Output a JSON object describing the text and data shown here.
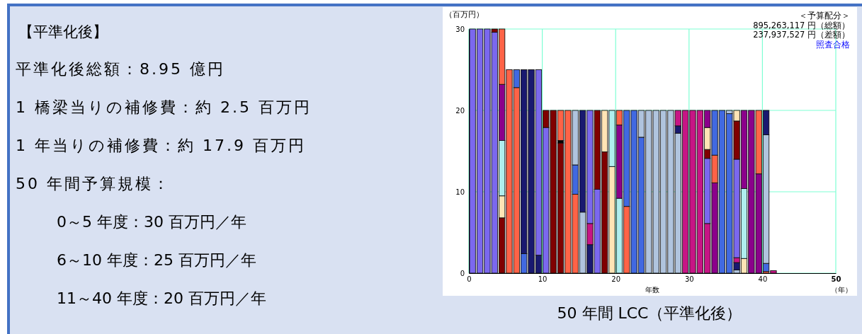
{
  "chart_data": [
    {
      "type": "other",
      "title": "【平準化後】",
      "annotations": [
        "平準化後総額：8.95 億円",
        "1 橋梁当りの補修費：約 2.5 百万円",
        "1 年当りの補修費：約 17.9 百万円",
        "50 年間予算規模：",
        "0～5 年度：30 百万円／年",
        "6～10 年度：25 百万円／年",
        "11～40 年度：20 百万円／年"
      ]
    },
    {
      "type": "bar",
      "stacked": true,
      "title": "50 年間 LCC（平準化後）",
      "xlabel": "年数",
      "ylabel": "（百万円）",
      "annotations": [
        "＜予算配分＞",
        "895,263,117 円（総額）",
        "237,937,527 円（差額）",
        "照査合格",
        "（年）"
      ],
      "xlim": [
        0,
        50
      ],
      "xticks": [
        0,
        10,
        20,
        30,
        40,
        50
      ],
      "ylim": [
        0,
        30
      ],
      "yticks": [
        0,
        10,
        20,
        30
      ],
      "grid": true,
      "x": [
        0.5,
        1.5,
        2.5,
        3.5,
        4.5,
        5.5,
        6.5,
        7.5,
        8.5,
        9.5,
        10.5,
        11.5,
        12.5,
        13.5,
        14.5,
        15.5,
        16.5,
        17.5,
        18.5,
        19.5,
        20.5,
        21.5,
        22.5,
        23.5,
        24.5,
        25.5,
        26.5,
        27.5,
        28.5,
        29.5,
        30.5,
        31.5,
        32.5,
        33.5,
        34.5,
        35.5,
        36.5,
        37.5,
        38.5,
        39.5,
        40.5,
        41.5
      ],
      "series": [
        {
          "values": [
            30,
            30,
            30,
            29.6,
            6.8,
            25,
            22.8,
            2.4,
            25,
            2.2,
            17.9,
            20,
            16.0,
            20,
            9.7,
            7.5,
            3.5,
            10.3,
            14.9,
            13.1,
            9.2,
            8.2,
            20,
            16.7,
            20,
            20,
            20,
            20,
            17.2,
            20,
            20,
            20,
            6.1,
            11.1,
            20,
            19.6,
            0.4,
            1.8,
            20,
            12.2,
            0.2,
            0.3
          ],
          "colors": [
            "#7b68ee",
            "#7b68ee",
            "#7b68ee",
            "#7b68ee",
            "#800000",
            "#ff6347",
            "#ff6347",
            "#4169e1",
            "#191970",
            "#191970",
            "#7b68ee",
            "#800000",
            "#800000",
            "#ff6347",
            "#ff6347",
            "#b0c4de",
            "#191970",
            "#7b68ee",
            "#800000",
            "#ffe4b5",
            "#afeeee",
            "#ff6347",
            "#4169e1",
            "#4169e1",
            "#b0c4de",
            "#b0c4de",
            "#b0c4de",
            "#b0c4de",
            "#b0c4de",
            "#c71585",
            "#c71585",
            "#c71585",
            "#c71585",
            "#8b008b",
            "#4169e1",
            "#4169e1",
            "#b0c4de",
            "#ffe4b5",
            "#8b008b",
            "#8b008b",
            "#ff6347",
            "#c71585"
          ]
        },
        {
          "values": [
            null,
            null,
            null,
            0.4,
            2.7,
            null,
            2.2,
            22.6,
            null,
            22.8,
            2.1,
            null,
            0.3,
            null,
            3.6,
            12.5,
            2.6,
            9.7,
            5.1,
            6.9,
            9.0,
            11.8,
            null,
            3.3,
            null,
            null,
            null,
            null,
            0.9,
            null,
            null,
            null,
            8.0,
            3.4,
            null,
            0.4,
            0.9,
            8.6,
            null,
            7.8,
            1.0,
            null
          ],
          "colors": [
            null,
            null,
            null,
            "#800000",
            "#ffe4b5",
            null,
            "#4169e1",
            "#191970",
            null,
            "#7b68ee",
            "#800000",
            null,
            "#000000",
            null,
            "#4169e1",
            "#191970",
            "#c71585",
            "#800000",
            "#ffe4b5",
            "#afeeee",
            "#8b008b",
            "#4169e1",
            null,
            "#b0c4de",
            null,
            null,
            null,
            null,
            "#191970",
            null,
            null,
            null,
            "#7b68ee",
            "#ff6347",
            null,
            "#b0c4de",
            "#191970",
            "#afeeee",
            null,
            "#ff6347",
            "#4169e1",
            null
          ]
        },
        {
          "values": [
            null,
            null,
            null,
            null,
            6.8,
            null,
            null,
            null,
            null,
            null,
            null,
            null,
            3.7,
            null,
            6.7,
            null,
            13.9,
            null,
            null,
            null,
            1.8,
            null,
            null,
            null,
            null,
            null,
            null,
            null,
            1.9,
            null,
            null,
            null,
            1.1,
            5.5,
            null,
            null,
            0.6,
            9.6,
            null,
            null,
            15.8,
            null
          ],
          "colors": [
            null,
            null,
            null,
            null,
            "#afeeee",
            null,
            null,
            null,
            null,
            null,
            null,
            null,
            "#ff6347",
            null,
            "#b0c4de",
            null,
            "#7b68ee",
            null,
            null,
            null,
            "#ff6347",
            null,
            null,
            null,
            null,
            null,
            null,
            null,
            "#c71585",
            null,
            null,
            null,
            "#800000",
            "#4169e1",
            null,
            null,
            "#c71585",
            "#8b008b",
            null,
            null,
            "#b0c4de",
            null
          ]
        },
        {
          "values": [
            null,
            null,
            null,
            null,
            6.9,
            null,
            null,
            null,
            null,
            null,
            null,
            null,
            null,
            null,
            null,
            null,
            null,
            null,
            null,
            null,
            null,
            null,
            null,
            null,
            null,
            null,
            null,
            null,
            null,
            null,
            null,
            null,
            2.7,
            null,
            null,
            null,
            12.1,
            null,
            null,
            null,
            3.0,
            null
          ],
          "colors": [
            null,
            null,
            null,
            null,
            "#8b008b",
            null,
            null,
            null,
            null,
            null,
            null,
            null,
            null,
            null,
            null,
            null,
            null,
            null,
            null,
            null,
            null,
            null,
            null,
            null,
            null,
            null,
            null,
            null,
            null,
            null,
            null,
            null,
            "#ffe4b5",
            null,
            null,
            null,
            "#7b68ee",
            null,
            null,
            null,
            "#191970",
            null
          ]
        },
        {
          "values": [
            null,
            null,
            null,
            null,
            6.8,
            null,
            null,
            null,
            null,
            null,
            null,
            null,
            null,
            null,
            null,
            null,
            null,
            null,
            null,
            null,
            null,
            null,
            null,
            null,
            null,
            null,
            null,
            null,
            null,
            null,
            null,
            null,
            2.1,
            null,
            null,
            null,
            4.7,
            null,
            null,
            null,
            null,
            null
          ],
          "colors": [
            null,
            null,
            null,
            null,
            "#ff6347",
            null,
            null,
            null,
            null,
            null,
            null,
            null,
            null,
            null,
            null,
            null,
            null,
            null,
            null,
            null,
            null,
            null,
            null,
            null,
            null,
            null,
            null,
            null,
            null,
            null,
            null,
            null,
            "#8b008b",
            null,
            null,
            null,
            "#800000",
            null,
            null,
            null,
            null,
            null
          ]
        },
        {
          "values": [
            null,
            null,
            null,
            null,
            null,
            null,
            null,
            null,
            null,
            null,
            null,
            null,
            null,
            null,
            null,
            null,
            null,
            null,
            null,
            null,
            null,
            null,
            null,
            null,
            null,
            null,
            null,
            null,
            null,
            null,
            null,
            null,
            null,
            null,
            null,
            null,
            1.3,
            null,
            null,
            null,
            null,
            null
          ],
          "colors": [
            null,
            null,
            null,
            null,
            null,
            null,
            null,
            null,
            null,
            null,
            null,
            null,
            null,
            null,
            null,
            null,
            null,
            null,
            null,
            null,
            null,
            null,
            null,
            null,
            null,
            null,
            null,
            null,
            null,
            null,
            null,
            null,
            null,
            null,
            null,
            null,
            "#ffe4b5",
            null,
            null,
            null,
            null,
            null
          ]
        }
      ]
    }
  ]
}
